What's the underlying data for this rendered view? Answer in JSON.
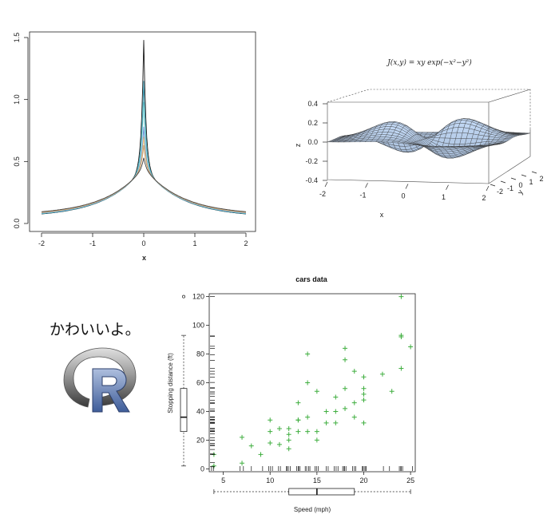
{
  "chart_data": [
    {
      "type": "line",
      "xlabel": "x",
      "ylabel": "",
      "xlim": [
        -2,
        2
      ],
      "ylim": [
        0,
        1.5
      ],
      "x_ticks": [
        "-2",
        "-1",
        "0",
        "1",
        "2"
      ],
      "y_ticks": [
        "0.0",
        "0.5",
        "1.0",
        "1.5"
      ],
      "series": [
        {
          "color": "#1a1a1a",
          "peak": 1.48,
          "edge": 0.05
        },
        {
          "color": "#2e8fa8",
          "peak": 1.15,
          "edge": 0.052
        },
        {
          "color": "#7ad4d4",
          "peak": 0.98,
          "edge": 0.055
        },
        {
          "color": "#6a8fd8",
          "peak": 0.78,
          "edge": 0.058
        },
        {
          "color": "#e8c27a",
          "peak": 0.7,
          "edge": 0.062
        },
        {
          "color": "#c7a077",
          "peak": 0.63,
          "edge": 0.066
        },
        {
          "color": "#444444",
          "peak": 0.53,
          "edge": 0.07
        }
      ]
    },
    {
      "type": "surface",
      "title": "J(x,y) = xy exp(−x²−y²)",
      "xlabel": "x",
      "ylabel": "y",
      "zlabel": "z",
      "x_ticks": [
        "-2",
        "-1",
        "0",
        "1",
        "2"
      ],
      "y_ticks": [
        "-2",
        "-1",
        "0",
        "1",
        "2"
      ],
      "z_ticks": [
        "0.4",
        "0.2",
        "0.0",
        "-0.2",
        "-0.4"
      ],
      "surface_color": "#b9d9ea"
    },
    {
      "type": "scatter",
      "title": "cars data",
      "xlabel": "Speed (mph)",
      "ylabel": "Stopping distance (ft)",
      "xlim": [
        3.5,
        25.5
      ],
      "ylim": [
        -2,
        122
      ],
      "x_ticks": [
        "5",
        "10",
        "15",
        "20",
        "25"
      ],
      "y_ticks": [
        "0",
        "20",
        "40",
        "60",
        "80",
        "100",
        "120"
      ],
      "marker_color": "#3fae3f",
      "points": [
        [
          4,
          2
        ],
        [
          4,
          10
        ],
        [
          7,
          4
        ],
        [
          7,
          22
        ],
        [
          8,
          16
        ],
        [
          9,
          10
        ],
        [
          10,
          18
        ],
        [
          10,
          26
        ],
        [
          10,
          34
        ],
        [
          11,
          17
        ],
        [
          11,
          28
        ],
        [
          12,
          14
        ],
        [
          12,
          20
        ],
        [
          12,
          24
        ],
        [
          12,
          28
        ],
        [
          13,
          26
        ],
        [
          13,
          34
        ],
        [
          13,
          34
        ],
        [
          13,
          46
        ],
        [
          14,
          26
        ],
        [
          14,
          36
        ],
        [
          14,
          60
        ],
        [
          14,
          80
        ],
        [
          15,
          20
        ],
        [
          15,
          26
        ],
        [
          15,
          54
        ],
        [
          16,
          32
        ],
        [
          16,
          40
        ],
        [
          17,
          32
        ],
        [
          17,
          40
        ],
        [
          17,
          50
        ],
        [
          18,
          42
        ],
        [
          18,
          56
        ],
        [
          18,
          76
        ],
        [
          18,
          84
        ],
        [
          19,
          36
        ],
        [
          19,
          46
        ],
        [
          19,
          68
        ],
        [
          20,
          32
        ],
        [
          20,
          48
        ],
        [
          20,
          52
        ],
        [
          20,
          56
        ],
        [
          20,
          64
        ],
        [
          22,
          66
        ],
        [
          23,
          54
        ],
        [
          24,
          70
        ],
        [
          24,
          92
        ],
        [
          24,
          93
        ],
        [
          24,
          120
        ],
        [
          25,
          85
        ]
      ]
    }
  ],
  "logo": {
    "text": "かわいいよ。",
    "letter": "R"
  }
}
